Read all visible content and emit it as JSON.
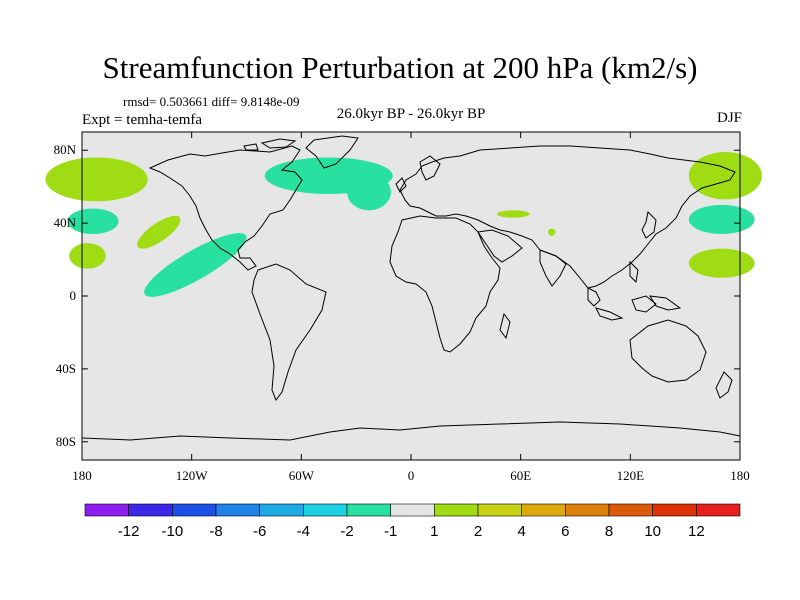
{
  "header": {
    "title": "Streamfunction Perturbation at 200 hPa (km2/s)",
    "stats": "rmsd= 0.503661 diff= 9.8148e-09",
    "experiment": "Expt = temha-temfa",
    "period": "26.0kyr BP - 26.0kyr BP",
    "season": "DJF"
  },
  "map": {
    "projection": "cylindrical equidistant",
    "background_color": "#e6e6e6",
    "coastline_color": "#000000",
    "lon_range": [
      -180,
      180
    ],
    "lat_range": [
      -90,
      90
    ],
    "lat_ticks": [
      {
        "value": 80,
        "label": "80N"
      },
      {
        "value": 40,
        "label": "40N"
      },
      {
        "value": 0,
        "label": "0"
      },
      {
        "value": -40,
        "label": "40S"
      },
      {
        "value": -80,
        "label": "80S"
      }
    ],
    "lon_ticks": [
      {
        "value": -180,
        "label": "180"
      },
      {
        "value": -120,
        "label": "120W"
      },
      {
        "value": -60,
        "label": "60W"
      },
      {
        "value": 0,
        "label": "0"
      },
      {
        "value": 60,
        "label": "60E"
      },
      {
        "value": 120,
        "label": "120E"
      },
      {
        "value": 180,
        "label": "180"
      }
    ],
    "anomaly_regions": [
      {
        "name": "north-pacific-west-positive",
        "level": 2,
        "color": "#a0dc14",
        "lon": -172,
        "lat": 64,
        "rlon": 28,
        "rlat": 12
      },
      {
        "name": "north-pacific-east-positive",
        "level": 2,
        "color": "#a0dc14",
        "lon": 172,
        "lat": 66,
        "rlon": 20,
        "rlat": 13
      },
      {
        "name": "north-pacific-negative-west",
        "level": -2,
        "color": "#28e0a0",
        "lon": -174,
        "lat": 41,
        "rlon": 14,
        "rlat": 7
      },
      {
        "name": "north-pacific-negative-east",
        "level": -2,
        "color": "#28e0a0",
        "lon": 170,
        "lat": 42,
        "rlon": 18,
        "rlat": 8
      },
      {
        "name": "subtropical-pacific-west-positive",
        "level": 2,
        "color": "#a0dc14",
        "lon": -177,
        "lat": 22,
        "rlon": 10,
        "rlat": 7
      },
      {
        "name": "subtropical-pacific-east-positive",
        "level": 2,
        "color": "#a0dc14",
        "lon": 170,
        "lat": 18,
        "rlon": 18,
        "rlat": 8
      },
      {
        "name": "northeast-pacific-positive",
        "level": 2,
        "color": "#a0dc14",
        "lon": -138,
        "lat": 35,
        "rlon": 14,
        "rlat": 5,
        "rot": -35
      },
      {
        "name": "tropical-pacific-negative",
        "level": -2,
        "color": "#28e0a0",
        "lon": -118,
        "lat": 17,
        "rlon": 32,
        "rlat": 8,
        "rot": -30
      },
      {
        "name": "north-atlantic-negative",
        "level": -2,
        "color": "#28e0a0",
        "lon": -45,
        "lat": 66,
        "rlon": 35,
        "rlat": 10
      },
      {
        "name": "north-atlantic-negative-tail",
        "level": -2,
        "color": "#28e0a0",
        "lon": -23,
        "lat": 57,
        "rlon": 12,
        "rlat": 10
      },
      {
        "name": "central-asia-positive",
        "level": 2,
        "color": "#a0dc14",
        "lon": 56,
        "lat": 45,
        "rlon": 9,
        "rlat": 2
      },
      {
        "name": "central-asia-positive-small",
        "level": 2,
        "color": "#a0dc14",
        "lon": 77,
        "lat": 35,
        "rlon": 2,
        "rlat": 2
      }
    ]
  },
  "colorbar": {
    "labels": [
      "-12",
      "-10",
      "-8",
      "-6",
      "-4",
      "-2",
      "-1",
      "1",
      "2",
      "4",
      "6",
      "8",
      "10",
      "12"
    ],
    "colors": [
      "#8c1ef0",
      "#3c28e6",
      "#1e50e6",
      "#1e82e6",
      "#1eaae6",
      "#1ed2e6",
      "#28e0a0",
      "#e6e6e6",
      "#a0dc14",
      "#c8d214",
      "#dcaa0a",
      "#dc820a",
      "#dc5a0a",
      "#dc3205",
      "#e61e1e"
    ]
  }
}
